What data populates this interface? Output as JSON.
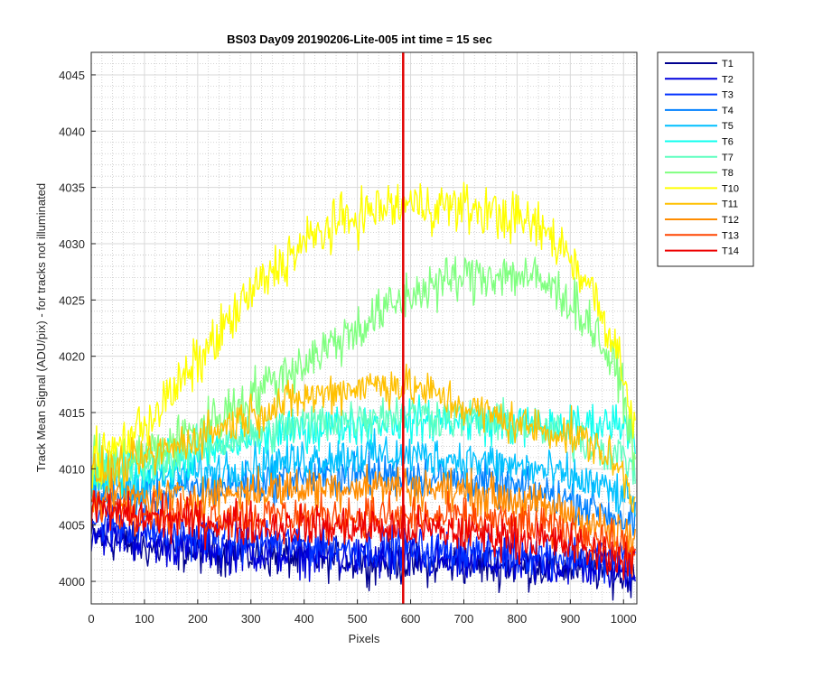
{
  "chart_data": {
    "type": "line",
    "title": "BS03 Day09 20190206-Lite-005 int time = 15 sec",
    "xlabel": "Pixels",
    "ylabel": "Track Mean Signal (ADU/pix) - for tracks not illuminated",
    "xlim": [
      0,
      1025
    ],
    "ylim": [
      3998,
      4047
    ],
    "xticks": [
      0,
      100,
      200,
      300,
      400,
      500,
      600,
      700,
      800,
      900,
      1000
    ],
    "yticks": [
      4000,
      4005,
      4010,
      4015,
      4020,
      4025,
      4030,
      4035,
      4040,
      4045
    ],
    "grid": "major and minor",
    "legend_position": "outside-right",
    "x": [
      0,
      50,
      100,
      150,
      200,
      250,
      300,
      350,
      400,
      450,
      500,
      550,
      600,
      650,
      700,
      750,
      800,
      850,
      900,
      950,
      1000,
      1023
    ],
    "series": [
      {
        "name": "T1",
        "color": "#00008f",
        "values": [
          4004,
          4003.5,
          4003,
          4002.8,
          4002.6,
          4002.5,
          4002.3,
          4002.2,
          4002,
          4002,
          4001.8,
          4001.7,
          4001.6,
          4001.5,
          4001.5,
          4001.4,
          4001.3,
          4001.2,
          4001.2,
          4001,
          4000.5,
          4000.5
        ]
      },
      {
        "name": "T2",
        "color": "#0000dd",
        "values": [
          4004.5,
          4004,
          4003.5,
          4003.2,
          4003,
          4002.8,
          4002.6,
          4002.5,
          4002.3,
          4002.2,
          4002,
          4002,
          4001.9,
          4001.8,
          4001.7,
          4001.6,
          4001.5,
          4001.4,
          4001.3,
          4001.2,
          4001,
          4001
        ]
      },
      {
        "name": "T3",
        "color": "#0030ff",
        "values": [
          4005.5,
          4005,
          4004.6,
          4004.3,
          4004,
          4003.8,
          4003.6,
          4003.5,
          4003.3,
          4003.2,
          4003,
          4003,
          4002.9,
          4002.8,
          4002.7,
          4002.6,
          4002.5,
          4002.4,
          4002.3,
          4002.2,
          4002,
          4002
        ]
      },
      {
        "name": "T4",
        "color": "#0080ff",
        "values": [
          4007.5,
          4007.4,
          4007.5,
          4007.8,
          4008.2,
          4008.5,
          4008.8,
          4009,
          4009.2,
          4009.3,
          4009.5,
          4009.5,
          4009.4,
          4009.2,
          4009,
          4008.6,
          4008.2,
          4007.8,
          4007.2,
          4006.5,
          4005.5,
          4005
        ]
      },
      {
        "name": "T5",
        "color": "#00c0ff",
        "values": [
          4008.5,
          4008.6,
          4008.8,
          4009.2,
          4009.6,
          4010,
          4010.3,
          4010.6,
          4010.8,
          4011,
          4011.2,
          4011.3,
          4011.2,
          4011,
          4010.8,
          4010.5,
          4010.2,
          4009.8,
          4009.2,
          4008.5,
          4007.5,
          4007
        ]
      },
      {
        "name": "T6",
        "color": "#10ffef",
        "values": [
          4009,
          4009.5,
          4010,
          4010.5,
          4011.2,
          4012,
          4012.6,
          4013,
          4013.5,
          4013.8,
          4014,
          4014.2,
          4014.3,
          4014.3,
          4014.2,
          4014,
          4013.9,
          4013.8,
          4013.8,
          4014,
          4014.2,
          4013
        ]
      },
      {
        "name": "T7",
        "color": "#60ffc0",
        "values": [
          4009.5,
          4010,
          4010.5,
          4011,
          4011.8,
          4012.5,
          4013,
          4013.5,
          4014,
          4014.3,
          4014.6,
          4014.8,
          4014.8,
          4014.7,
          4014.5,
          4014.2,
          4013.8,
          4013.3,
          4012.8,
          4012,
          4011,
          4010
        ]
      },
      {
        "name": "T8",
        "color": "#80ff80",
        "values": [
          4010,
          4010.5,
          4011.2,
          4012.2,
          4013.5,
          4015,
          4016.5,
          4018,
          4019.5,
          4021,
          4022.5,
          4024,
          4025.5,
          4026.5,
          4027,
          4027.3,
          4027.3,
          4026.5,
          4025,
          4022,
          4017,
          4010
        ]
      },
      {
        "name": "T10",
        "color": "#ffff00",
        "values": [
          4010.5,
          4012,
          4014,
          4016.5,
          4019.5,
          4022.5,
          4025.5,
          4028,
          4030,
          4031.5,
          4032.5,
          4033.2,
          4033.5,
          4033.4,
          4033.2,
          4032.8,
          4032.2,
          4031.2,
          4029,
          4025,
          4019,
          4013
        ]
      },
      {
        "name": "T11",
        "color": "#ffc000",
        "values": [
          4009.5,
          4010,
          4010.8,
          4011.8,
          4012.8,
          4013.8,
          4014.8,
          4015.6,
          4016.3,
          4016.8,
          4017.3,
          4017.6,
          4017.3,
          4016.5,
          4015.5,
          4014.8,
          4014,
          4013.5,
          4013,
          4012,
          4009.5,
          4006.5
        ]
      },
      {
        "name": "T12",
        "color": "#ff8c00",
        "values": [
          4007.5,
          4007.4,
          4007.3,
          4007.4,
          4007.6,
          4007.8,
          4008,
          4008.2,
          4008.3,
          4008.4,
          4008.5,
          4008.5,
          4008.4,
          4008.2,
          4008,
          4007.6,
          4007.2,
          4006.6,
          4006,
          4005,
          4004,
          4003.5
        ]
      },
      {
        "name": "T13",
        "color": "#ff4500",
        "values": [
          4007,
          4006.6,
          4006.3,
          4006.1,
          4006,
          4005.9,
          4005.8,
          4005.8,
          4005.8,
          4005.8,
          4005.8,
          4005.8,
          4005.7,
          4005.6,
          4005.5,
          4005.3,
          4005.1,
          4004.8,
          4004.4,
          4003.8,
          4003,
          4002.5
        ]
      },
      {
        "name": "T14",
        "color": "#ee0000",
        "values": [
          4006.5,
          4006,
          4005.7,
          4005.5,
          4005.3,
          4005.2,
          4005,
          4005,
          4004.9,
          4004.8,
          4004.8,
          4004.7,
          4004.6,
          4004.5,
          4004.3,
          4004.1,
          4003.9,
          4003.6,
          4003.2,
          4002.6,
          4002,
          4001.5
        ]
      }
    ],
    "annotations": [
      {
        "type": "vertical-line",
        "x": 586,
        "color": "#e00000"
      }
    ]
  }
}
